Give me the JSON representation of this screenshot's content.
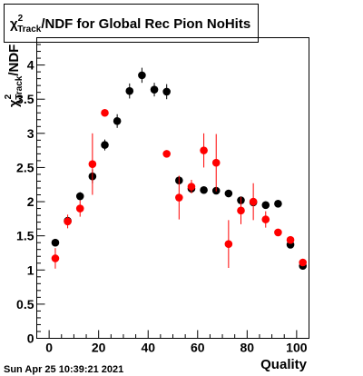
{
  "chart_data": {
    "type": "scatter",
    "title": {
      "chi_symbol": "χ",
      "superscript": "2",
      "subscript": "Track",
      "rest": "/NDF for Global Rec Pion NoHits"
    },
    "ylabel": {
      "chi_symbol": "χ",
      "superscript": "2",
      "subscript": "Track",
      "rest": "/NDF"
    },
    "xlabel": "Quality",
    "timestamp": "Sun Apr 25 10:39:21 2021",
    "xlim": [
      -5,
      105
    ],
    "ylim": [
      0,
      4.4
    ],
    "x_ticks": [
      0,
      20,
      40,
      60,
      80,
      100
    ],
    "x_tick_labels": [
      "0",
      "20",
      "40",
      "60",
      "80",
      "100"
    ],
    "y_ticks": [
      0,
      0.5,
      1,
      1.5,
      2,
      2.5,
      3,
      3.5,
      4
    ],
    "y_tick_labels": [
      "0",
      "0.5",
      "1",
      "1.5",
      "2",
      "2.5",
      "3",
      "3.5",
      "4"
    ],
    "grid": false,
    "legend": "none",
    "series": [
      {
        "color": "#000000",
        "points": [
          {
            "x": 2.5,
            "y": 1.4,
            "err": 0.05
          },
          {
            "x": 7.5,
            "y": 1.72,
            "err": 0.05
          },
          {
            "x": 12.5,
            "y": 2.08,
            "err": 0.06
          },
          {
            "x": 17.5,
            "y": 2.37,
            "err": 0.1
          },
          {
            "x": 22.5,
            "y": 2.83,
            "err": 0.08
          },
          {
            "x": 27.5,
            "y": 3.18,
            "err": 0.1
          },
          {
            "x": 32.5,
            "y": 3.62,
            "err": 0.11
          },
          {
            "x": 37.5,
            "y": 3.85,
            "err": 0.11
          },
          {
            "x": 42.5,
            "y": 3.64,
            "err": 0.1
          },
          {
            "x": 47.5,
            "y": 3.61,
            "err": 0.11
          },
          {
            "x": 52.5,
            "y": 2.31,
            "err": 0.06
          },
          {
            "x": 57.5,
            "y": 2.19,
            "err": 0.05
          },
          {
            "x": 62.5,
            "y": 2.17,
            "err": 0.05
          },
          {
            "x": 67.5,
            "y": 2.16,
            "err": 0.04
          },
          {
            "x": 72.5,
            "y": 2.12,
            "err": 0.04
          },
          {
            "x": 77.5,
            "y": 2.02,
            "err": 0.04
          },
          {
            "x": 82.5,
            "y": 1.99,
            "err": 0.04
          },
          {
            "x": 87.5,
            "y": 1.95,
            "err": 0.04
          },
          {
            "x": 92.5,
            "y": 1.97,
            "err": 0.03
          },
          {
            "x": 97.5,
            "y": 1.37,
            "err": 0.04
          },
          {
            "x": 102.5,
            "y": 1.06,
            "err": 0.03
          }
        ]
      },
      {
        "color": "#ff0000",
        "points": [
          {
            "x": 2.5,
            "y": 1.17,
            "err": 0.15
          },
          {
            "x": 7.5,
            "y": 1.71,
            "err": 0.1
          },
          {
            "x": 12.5,
            "y": 1.9,
            "err": 0.12
          },
          {
            "x": 17.5,
            "y": 2.55,
            "err": 0.45
          },
          {
            "x": 22.5,
            "y": 3.3,
            "err": 0.04
          },
          {
            "x": 47.5,
            "y": 2.7,
            "err": 0.03
          },
          {
            "x": 52.5,
            "y": 2.06,
            "err": 0.32
          },
          {
            "x": 57.5,
            "y": 2.22,
            "err": 0.1
          },
          {
            "x": 62.5,
            "y": 2.75,
            "err": 0.25
          },
          {
            "x": 67.5,
            "y": 2.57,
            "err": 0.42
          },
          {
            "x": 72.5,
            "y": 1.38,
            "err": 0.35
          },
          {
            "x": 77.5,
            "y": 1.87,
            "err": 0.2
          },
          {
            "x": 82.5,
            "y": 2.0,
            "err": 0.27
          },
          {
            "x": 87.5,
            "y": 1.74,
            "err": 0.12
          },
          {
            "x": 92.5,
            "y": 1.55,
            "err": 0.05
          },
          {
            "x": 97.5,
            "y": 1.44,
            "err": 0.04
          },
          {
            "x": 102.5,
            "y": 1.11,
            "err": 0.03
          }
        ]
      }
    ]
  }
}
